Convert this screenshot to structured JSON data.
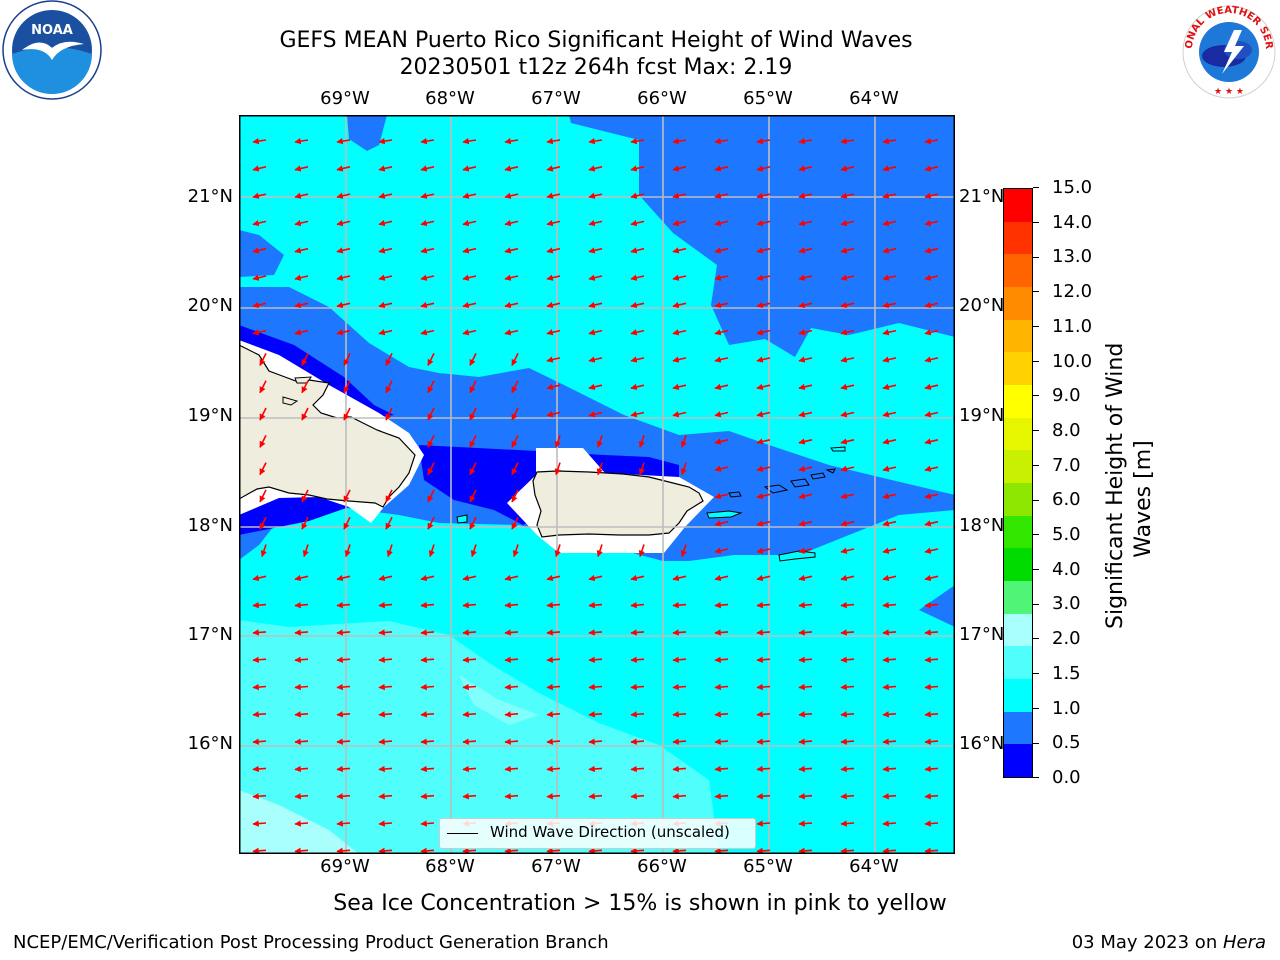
{
  "title": {
    "line1": "GEFS MEAN Puerto Rico Significant Height of Wind Waves",
    "line2": "20230501 t12z 264h fcst   Max: 2.19"
  },
  "map": {
    "lon_ticks": [
      "69°W",
      "68°W",
      "67°W",
      "66°W",
      "65°W",
      "64°W"
    ],
    "lat_ticks": [
      "21°N",
      "20°N",
      "19°N",
      "18°N",
      "17°N",
      "16°N"
    ],
    "legend": "Wind Wave Direction (unscaled)",
    "colors": {
      "land": "#efedde",
      "c00": "#0000ff",
      "c05": "#1e78ff",
      "c10": "#00ffff",
      "c15": "#50fffc",
      "c20": "#a8fffb",
      "arrow": "#ff0000"
    }
  },
  "colorbar": {
    "label_line1": "Significant Height of Wind",
    "label_line2": "Waves [m]",
    "ticks": [
      "15.0",
      "14.0",
      "13.0",
      "12.0",
      "11.0",
      "10.0",
      "9.0",
      "8.0",
      "7.0",
      "6.0",
      "5.0",
      "4.0",
      "3.0",
      "2.0",
      "1.5",
      "1.0",
      "0.5",
      "0.0"
    ],
    "colors": [
      "#0000ff",
      "#1e78ff",
      "#00ffff",
      "#50fffc",
      "#a8fffb",
      "#50f578",
      "#00dc00",
      "#32e600",
      "#8ce600",
      "#c8f000",
      "#e6f500",
      "#ffff00",
      "#ffd200",
      "#ffb400",
      "#ff8c00",
      "#ff6400",
      "#ff3200",
      "#ff0000"
    ]
  },
  "caption": "Sea Ice Concentration > 15% is shown in pink to yellow",
  "footer": {
    "left": "NCEP/EMC/Verification Post Processing Product Generation Branch",
    "right_prefix": "03 May 2023 on ",
    "right_host": "Hera"
  },
  "logos": {
    "noaa_text": "NOAA",
    "nws_text": "NATIONAL WEATHER SERVICE"
  }
}
